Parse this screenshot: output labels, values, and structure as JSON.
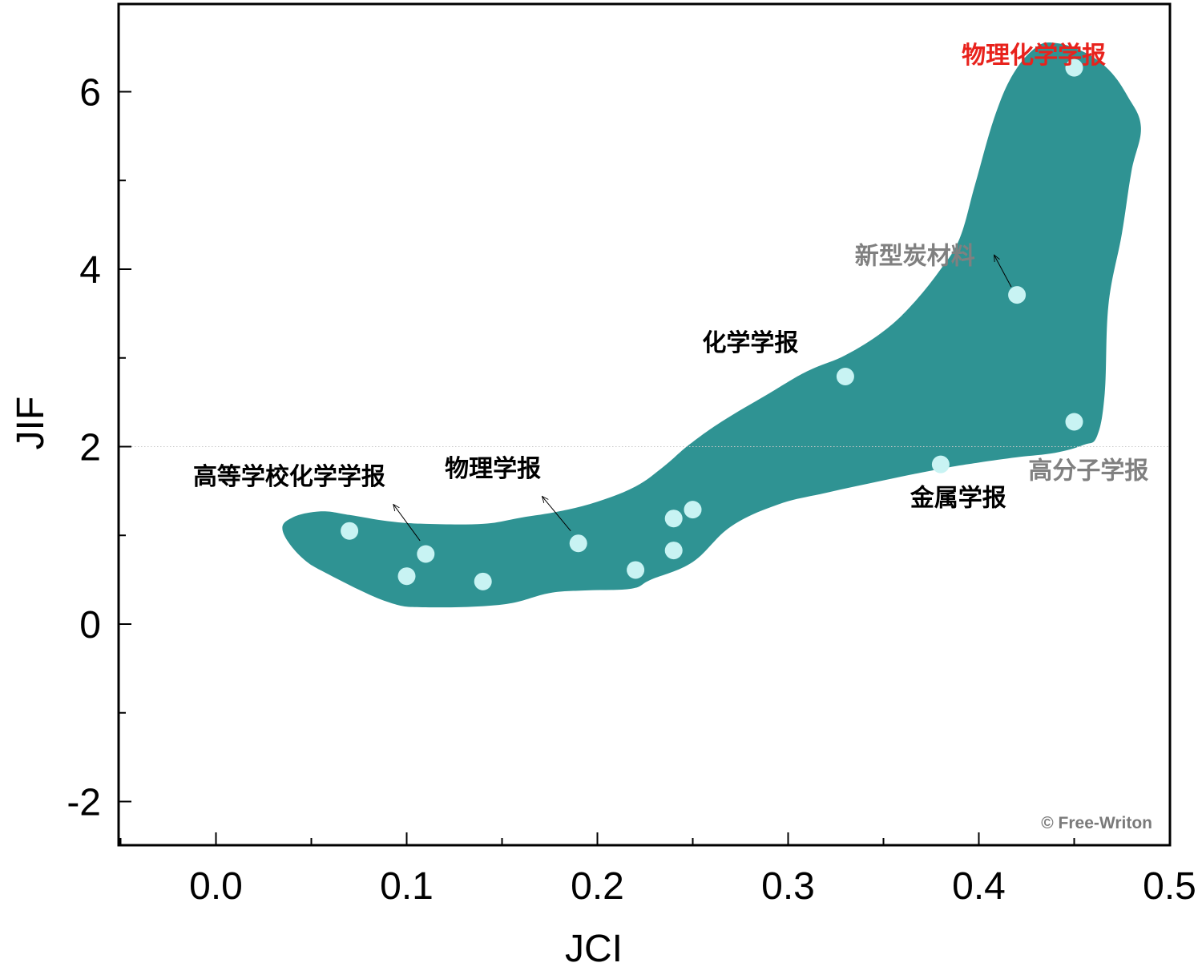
{
  "chart_data": {
    "type": "scatter",
    "xlabel": "JCI",
    "ylabel": "JIF",
    "xlim": [
      -0.05,
      0.5
    ],
    "ylim": [
      -2.5,
      7.0
    ],
    "xticks": [
      "0.0",
      "0.1",
      "0.2",
      "0.3",
      "0.4",
      "0.5"
    ],
    "yticks": [
      "-2",
      "0",
      "2",
      "4",
      "6"
    ],
    "grid": false,
    "reference_line": {
      "y": 2.0,
      "style": "dotted",
      "color": "#c8c8c8"
    },
    "region": {
      "fill": "#2f9393",
      "outline": [
        [
          0.035,
          1.05
        ],
        [
          0.04,
          1.2
        ],
        [
          0.055,
          1.27
        ],
        [
          0.07,
          1.23
        ],
        [
          0.09,
          1.16
        ],
        [
          0.11,
          1.13
        ],
        [
          0.14,
          1.13
        ],
        [
          0.16,
          1.2
        ],
        [
          0.18,
          1.27
        ],
        [
          0.2,
          1.38
        ],
        [
          0.22,
          1.55
        ],
        [
          0.235,
          1.78
        ],
        [
          0.248,
          2.02
        ],
        [
          0.265,
          2.28
        ],
        [
          0.29,
          2.6
        ],
        [
          0.31,
          2.85
        ],
        [
          0.33,
          3.03
        ],
        [
          0.35,
          3.3
        ],
        [
          0.365,
          3.6
        ],
        [
          0.38,
          4.0
        ],
        [
          0.39,
          4.35
        ],
        [
          0.398,
          4.95
        ],
        [
          0.408,
          5.7
        ],
        [
          0.418,
          6.2
        ],
        [
          0.43,
          6.5
        ],
        [
          0.44,
          6.55
        ],
        [
          0.455,
          6.45
        ],
        [
          0.468,
          6.25
        ],
        [
          0.478,
          5.95
        ],
        [
          0.485,
          5.6
        ],
        [
          0.48,
          5.1
        ],
        [
          0.475,
          4.4
        ],
        [
          0.468,
          3.6
        ],
        [
          0.466,
          2.6
        ],
        [
          0.462,
          2.12
        ],
        [
          0.455,
          2.02
        ],
        [
          0.44,
          1.93
        ],
        [
          0.42,
          1.88
        ],
        [
          0.4,
          1.82
        ],
        [
          0.38,
          1.75
        ],
        [
          0.35,
          1.62
        ],
        [
          0.32,
          1.48
        ],
        [
          0.295,
          1.35
        ],
        [
          0.27,
          1.1
        ],
        [
          0.25,
          0.7
        ],
        [
          0.228,
          0.5
        ],
        [
          0.218,
          0.4
        ],
        [
          0.195,
          0.38
        ],
        [
          0.175,
          0.35
        ],
        [
          0.15,
          0.22
        ],
        [
          0.11,
          0.19
        ],
        [
          0.09,
          0.25
        ],
        [
          0.06,
          0.55
        ],
        [
          0.045,
          0.75
        ],
        [
          0.035,
          1.05
        ]
      ]
    },
    "series": [
      {
        "color": "#c8f3f3",
        "x": [
          0.07,
          0.1,
          0.11,
          0.14,
          0.19,
          0.22,
          0.24,
          0.24,
          0.25,
          0.33,
          0.38,
          0.42,
          0.45,
          0.45
        ],
        "y": [
          1.05,
          0.54,
          0.79,
          0.48,
          0.91,
          0.61,
          0.83,
          1.19,
          1.29,
          2.79,
          1.8,
          3.71,
          2.28,
          6.27
        ]
      }
    ],
    "annotations": [
      {
        "text": "物理化学学报",
        "x": 0.391,
        "y": 6.32,
        "color": "#e8221c"
      },
      {
        "text": "新型炭材料",
        "x": 0.335,
        "y": 4.06,
        "color": "#808080",
        "arrow_to": [
          0.408,
          4.16
        ],
        "arrow_from": [
          0.417,
          3.8
        ]
      },
      {
        "text": "化学学报",
        "x": 0.255,
        "y": 3.08,
        "color": "#000000"
      },
      {
        "text": "高等学校化学学报",
        "x": -0.012,
        "y": 1.57,
        "color": "#000000",
        "arrow_to": [
          0.093,
          1.35
        ],
        "arrow_from": [
          0.107,
          0.94
        ]
      },
      {
        "text": "物理学报",
        "x": 0.12,
        "y": 1.66,
        "color": "#000000",
        "arrow_to": [
          0.171,
          1.44
        ],
        "arrow_from": [
          0.186,
          1.05
        ]
      },
      {
        "text": "金属学报",
        "x": 0.364,
        "y": 1.33,
        "color": "#000000"
      },
      {
        "text": "高分子学报",
        "x": 0.426,
        "y": 1.64,
        "color": "#808080"
      }
    ]
  },
  "watermark": "© Free-Writon"
}
